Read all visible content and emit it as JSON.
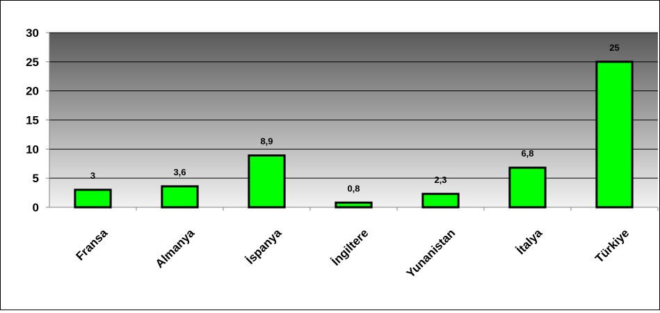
{
  "chart_data": {
    "type": "bar",
    "title": "",
    "xlabel": "",
    "ylabel": "",
    "categories": [
      "Fransa",
      "Almanya",
      "İspanya",
      "İngiltere",
      "Yunanistan",
      "İtalya",
      "Türkiye"
    ],
    "values": [
      3,
      3.6,
      8.9,
      0.8,
      2.3,
      6.8,
      25
    ],
    "data_labels": [
      "3",
      "3,6",
      "8,9",
      "0,8",
      "2,3",
      "6,8",
      "25"
    ],
    "y_ticks": [
      "0",
      "5",
      "10",
      "15",
      "20",
      "25",
      "30"
    ],
    "ylim": [
      0,
      30
    ],
    "grid": true,
    "legend": "none",
    "colors": {
      "bar_fill": "#00ff00",
      "bar_stroke": "#000000",
      "plot_gradient_top": "#5a5a5a",
      "plot_gradient_bottom": "#f2f2f2",
      "gridline": "#000000"
    }
  }
}
